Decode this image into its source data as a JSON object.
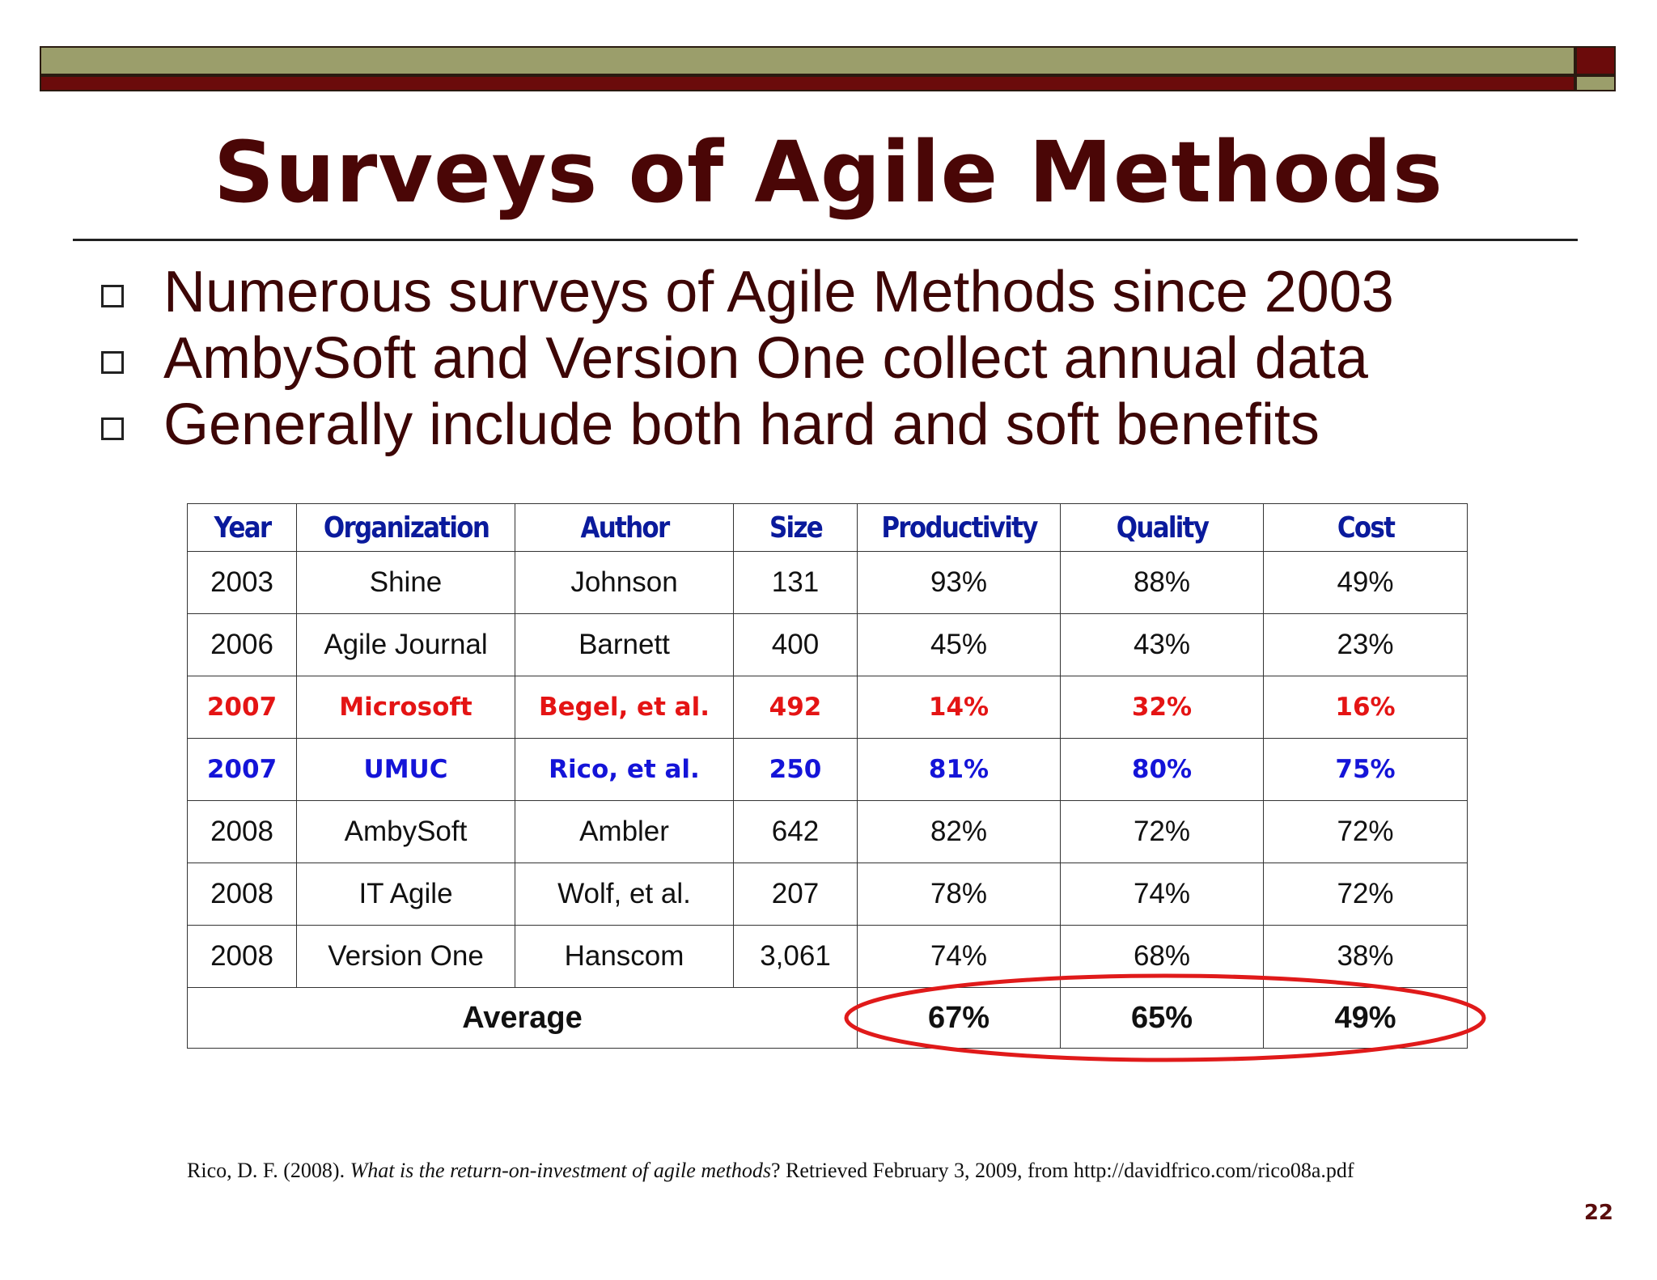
{
  "title": "Surveys of Agile Methods",
  "bullets": [
    "Numerous surveys of Agile Methods since 2003",
    "AmbySoft and Version One collect annual data",
    "Generally include both hard and soft benefits"
  ],
  "table": {
    "headers": [
      "Year",
      "Organization",
      "Author",
      "Size",
      "Productivity",
      "Quality",
      "Cost"
    ],
    "rows": [
      [
        "2003",
        "Shine",
        "Johnson",
        "131",
        "93%",
        "88%",
        "49%"
      ],
      [
        "2006",
        "Agile Journal",
        "Barnett",
        "400",
        "45%",
        "43%",
        "23%"
      ],
      [
        "2007",
        "Microsoft",
        "Begel, et al.",
        "492",
        "14%",
        "32%",
        "16%"
      ],
      [
        "2007",
        "UMUC",
        "Rico, et al.",
        "250",
        "81%",
        "80%",
        "75%"
      ],
      [
        "2008",
        "AmbySoft",
        "Ambler",
        "642",
        "82%",
        "72%",
        "72%"
      ],
      [
        "2008",
        "IT Agile",
        "Wolf, et al.",
        "207",
        "78%",
        "74%",
        "72%"
      ],
      [
        "2008",
        "Version One",
        "Hanscom",
        "3,061",
        "74%",
        "68%",
        "38%"
      ]
    ],
    "average": {
      "label": "Average",
      "productivity": "67%",
      "quality": "65%",
      "cost": "49%"
    }
  },
  "citation": {
    "prefix": "Rico, D. F. (2008). ",
    "title": "What is the return-on-investment of agile methods",
    "suffix": "? Retrieved February 3, 2009, from http://davidfrico.com/rico08a.pdf"
  },
  "page_number": "22",
  "colors": {
    "title": "#4a0606",
    "header_text": "#0a1a9c",
    "highlight_red": "#e41414",
    "highlight_blue": "#1414d8",
    "bar_olive": "#9b9e6b",
    "bar_maroon": "#6b0b0b",
    "ellipse": "#e01a1a"
  }
}
